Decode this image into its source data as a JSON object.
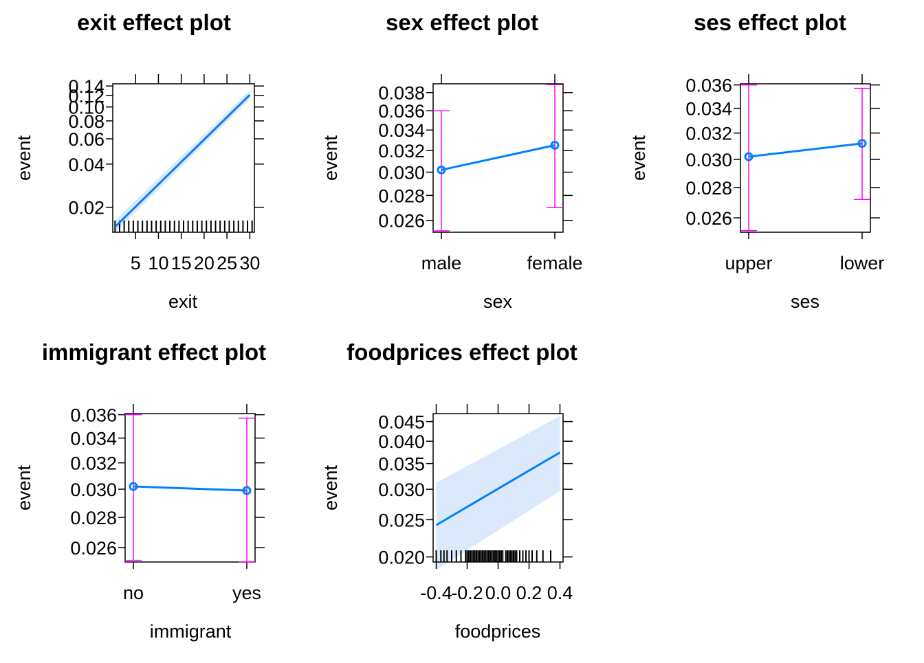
{
  "colors": {
    "line": "#0080ff",
    "band": "#dbe9fb",
    "error": "#ff00ff",
    "frame": "#000000",
    "rug": "#000000"
  },
  "chart_data": [
    {
      "type": "line",
      "title": "exit effect plot",
      "xlabel": "exit",
      "ylabel": "event",
      "xlim": [
        0,
        31
      ],
      "x_ticks": [
        5,
        10,
        15,
        20,
        25,
        30
      ],
      "x_tick_labels": [
        "5",
        "10",
        "15",
        "20",
        "25",
        "30"
      ],
      "y_scale": "log",
      "ylim": [
        0.0134,
        0.145
      ],
      "y_ticks": [
        0.02,
        0.04,
        0.06,
        0.08,
        0.1,
        0.12,
        0.14
      ],
      "y_tick_labels": [
        "0.02",
        "0.04",
        "0.06",
        "0.08",
        "0.10",
        "0.12",
        "0.14"
      ],
      "x": [
        0.5,
        30
      ],
      "y": [
        0.0146,
        0.1215
      ],
      "lower": [
        0.0134,
        0.113
      ],
      "upper": [
        0.0162,
        0.131
      ],
      "rug": [
        0.5,
        1.5,
        2.5,
        3.5,
        4.5,
        5.5,
        6.5,
        7.5,
        8.5,
        9.5,
        10.5,
        11.5,
        12.5,
        13.5,
        14.5,
        15.5,
        16.5,
        17.5,
        18.5,
        19.5,
        20.5,
        21.5,
        22.5,
        23.5,
        24.5,
        25.5,
        26.5,
        27.5,
        28.5,
        29.5,
        30.5
      ]
    },
    {
      "type": "line",
      "title": "sex effect plot",
      "xlabel": "sex",
      "ylabel": "event",
      "categories": [
        "male",
        "female"
      ],
      "y_scale": "log",
      "ylim": [
        0.0251,
        0.039
      ],
      "y_ticks": [
        0.026,
        0.028,
        0.03,
        0.032,
        0.034,
        0.036,
        0.038
      ],
      "y_tick_labels": [
        "0.026",
        "0.028",
        "0.030",
        "0.032",
        "0.034",
        "0.036",
        "0.038"
      ],
      "values": [
        0.0302,
        0.0325
      ],
      "lower": [
        0.0252,
        0.027
      ],
      "upper": [
        0.036,
        0.0389
      ]
    },
    {
      "type": "line",
      "title": "ses effect plot",
      "xlabel": "ses",
      "ylabel": "event",
      "categories": [
        "upper",
        "lower"
      ],
      "y_scale": "log",
      "ylim": [
        0.0251,
        0.0361
      ],
      "y_ticks": [
        0.026,
        0.028,
        0.03,
        0.032,
        0.034,
        0.036
      ],
      "y_tick_labels": [
        "0.026",
        "0.028",
        "0.030",
        "0.032",
        "0.034",
        "0.036"
      ],
      "values": [
        0.0302,
        0.0312
      ],
      "lower": [
        0.0252,
        0.0272
      ],
      "upper": [
        0.036,
        0.0357
      ]
    },
    {
      "type": "line",
      "title": "immigrant effect plot",
      "xlabel": "immigrant",
      "ylabel": "event",
      "categories": [
        "no",
        "yes"
      ],
      "y_scale": "log",
      "ylim": [
        0.0251,
        0.0361
      ],
      "y_ticks": [
        0.026,
        0.028,
        0.03,
        0.032,
        0.034,
        0.036
      ],
      "y_tick_labels": [
        "0.026",
        "0.028",
        "0.030",
        "0.032",
        "0.034",
        "0.036"
      ],
      "values": [
        0.0302,
        0.0299
      ],
      "lower": [
        0.0252,
        0.0251
      ],
      "upper": [
        0.036,
        0.0357
      ]
    },
    {
      "type": "line",
      "title": "foodprices effect plot",
      "xlabel": "foodprices",
      "ylabel": "event",
      "xlim": [
        -0.42,
        0.42
      ],
      "x_ticks": [
        -0.4,
        -0.2,
        0.0,
        0.2,
        0.4
      ],
      "x_tick_labels": [
        "-0.4",
        "-0.2",
        "0.0",
        "0.2",
        "0.4"
      ],
      "y_scale": "log",
      "ylim": [
        0.0194,
        0.0472
      ],
      "y_ticks": [
        0.02,
        0.025,
        0.03,
        0.035,
        0.04,
        0.045
      ],
      "y_tick_labels": [
        "0.020",
        "0.025",
        "0.030",
        "0.035",
        "0.040",
        "0.045"
      ],
      "x": [
        -0.4,
        0.4
      ],
      "y": [
        0.0242,
        0.0374
      ],
      "lower": [
        0.0185,
        0.0297
      ],
      "upper": [
        0.0312,
        0.0465
      ],
      "rug": [
        -0.4,
        -0.37,
        -0.35,
        -0.33,
        -0.3,
        -0.27,
        -0.24,
        -0.21,
        -0.2,
        -0.19,
        -0.18,
        -0.17,
        -0.16,
        -0.15,
        -0.14,
        -0.13,
        -0.12,
        -0.11,
        -0.1,
        -0.09,
        -0.08,
        -0.07,
        -0.06,
        -0.05,
        -0.04,
        -0.03,
        -0.02,
        -0.01,
        0.0,
        0.01,
        0.02,
        0.03,
        0.05,
        0.06,
        0.07,
        0.08,
        0.09,
        0.1,
        0.11,
        0.12,
        0.14,
        0.16,
        0.18,
        0.2,
        0.22,
        0.25,
        0.29,
        0.34
      ]
    }
  ]
}
